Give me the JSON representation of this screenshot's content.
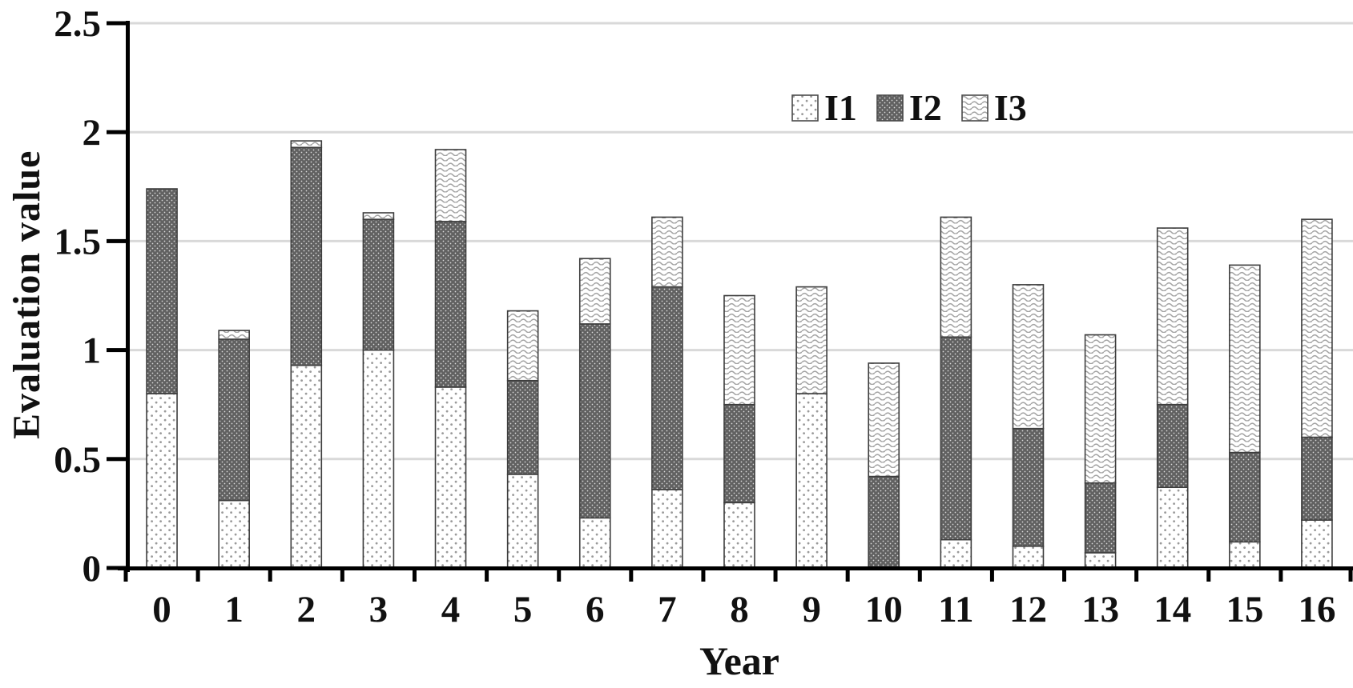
{
  "figure": {
    "y_axis_title": "Evaluation value",
    "x_axis_title": "Year"
  },
  "chart_data": {
    "type": "bar",
    "stacked": true,
    "title": "",
    "xlabel": "Year",
    "ylabel": "Evaluation value",
    "categories": [
      "0",
      "1",
      "2",
      "3",
      "4",
      "5",
      "6",
      "7",
      "8",
      "9",
      "10",
      "11",
      "12",
      "13",
      "14",
      "15",
      "16"
    ],
    "series": [
      {
        "name": "I1",
        "pattern": "light-dots",
        "values": [
          0.8,
          0.31,
          0.93,
          1.0,
          0.83,
          0.43,
          0.23,
          0.36,
          0.3,
          0.8,
          0.0,
          0.13,
          0.1,
          0.07,
          0.37,
          0.12,
          0.22
        ]
      },
      {
        "name": "I2",
        "pattern": "dark-dots",
        "values": [
          0.94,
          0.74,
          1.0,
          0.6,
          0.76,
          0.43,
          0.89,
          0.93,
          0.45,
          0.0,
          0.42,
          0.93,
          0.54,
          0.32,
          0.38,
          0.41,
          0.38
        ]
      },
      {
        "name": "I3",
        "pattern": "waves",
        "values": [
          0.0,
          0.04,
          0.03,
          0.03,
          0.33,
          0.32,
          0.3,
          0.32,
          0.5,
          0.49,
          0.52,
          0.55,
          0.66,
          0.68,
          0.81,
          0.86,
          1.0
        ]
      }
    ],
    "totals": [
      1.74,
      1.09,
      1.96,
      1.63,
      1.92,
      1.18,
      1.42,
      1.61,
      1.25,
      1.29,
      0.94,
      1.61,
      1.3,
      1.07,
      1.56,
      1.39,
      1.6
    ],
    "ylim": [
      0,
      2.5
    ],
    "yticks": [
      "0",
      "0.5",
      "1",
      "1.5",
      "2",
      "2.5"
    ],
    "grid": true,
    "legend_position": "top-right",
    "colors": {
      "bar_dark": "#616161",
      "light_dot": "#9a9a9a",
      "dark_dot_highlight": "#e8e8e8",
      "wave_line": "#a3a3a3",
      "segment_outline": "#3d3d3d",
      "gridline": "#d9d9d9",
      "axis": "#000000",
      "text": "#111111"
    }
  }
}
